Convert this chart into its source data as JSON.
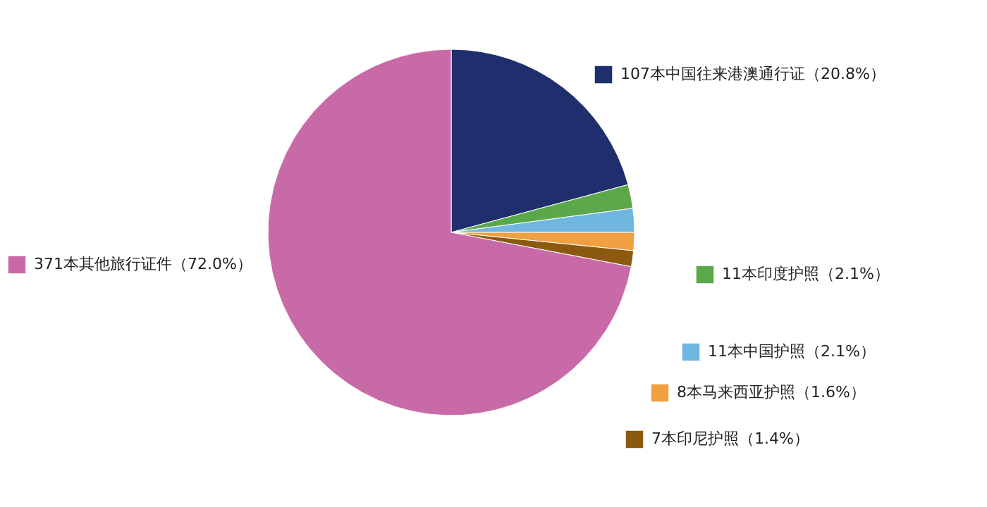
{
  "chart_data": {
    "type": "pie",
    "categories": [
      "107本中国往来港澳通行证（20.8%）",
      "11本印度护照（2.1%）",
      "11本中国护照（2.1%）",
      "8本马来西亚护照（1.6%）",
      "7本印尼护照（1.4%）",
      "371本其他旅行证件（72.0%）"
    ],
    "values": [
      20.8,
      2.1,
      2.1,
      1.6,
      1.4,
      72.0
    ],
    "colors": [
      "#1f2f6e",
      "#5aa84a",
      "#6fb6e0",
      "#f0a040",
      "#8b5a10",
      "#c86aa8"
    ],
    "legend": "right"
  }
}
